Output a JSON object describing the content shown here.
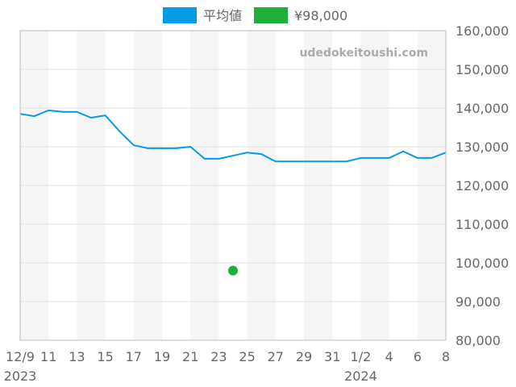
{
  "chart_data": {
    "type": "line",
    "title": "",
    "watermark": "udedokeitoushi.com",
    "ylim": [
      80000,
      160000
    ],
    "yticks": [
      "80,000",
      "90,000",
      "100,000",
      "110,000",
      "120,000",
      "130,000",
      "140,000",
      "150,000",
      "160,000"
    ],
    "xticks": [
      {
        "day": 0,
        "label": "12/9",
        "sub": "2023"
      },
      {
        "day": 2,
        "label": "11"
      },
      {
        "day": 4,
        "label": "13"
      },
      {
        "day": 6,
        "label": "15"
      },
      {
        "day": 8,
        "label": "17"
      },
      {
        "day": 10,
        "label": "19"
      },
      {
        "day": 12,
        "label": "21"
      },
      {
        "day": 14,
        "label": "23"
      },
      {
        "day": 16,
        "label": "25"
      },
      {
        "day": 18,
        "label": "27"
      },
      {
        "day": 20,
        "label": "29"
      },
      {
        "day": 22,
        "label": "31"
      },
      {
        "day": 24,
        "label": "1/2",
        "sub": "2024"
      },
      {
        "day": 26,
        "label": "4"
      },
      {
        "day": 28,
        "label": "6"
      },
      {
        "day": 30,
        "label": "8"
      }
    ],
    "x": [
      "2023-12-09",
      "2023-12-10",
      "2023-12-11",
      "2023-12-12",
      "2023-12-13",
      "2023-12-14",
      "2023-12-15",
      "2023-12-16",
      "2023-12-17",
      "2023-12-18",
      "2023-12-19",
      "2023-12-20",
      "2023-12-21",
      "2023-12-22",
      "2023-12-23",
      "2023-12-24",
      "2023-12-25",
      "2023-12-26",
      "2023-12-27",
      "2023-12-28",
      "2023-12-29",
      "2023-12-30",
      "2023-12-31",
      "2024-01-01",
      "2024-01-02",
      "2024-01-03",
      "2024-01-04",
      "2024-01-05",
      "2024-01-06",
      "2024-01-07",
      "2024-01-08"
    ],
    "series": [
      {
        "name": "平均値",
        "color": "#039be5",
        "values": [
          138500,
          137900,
          139400,
          139000,
          139000,
          137500,
          138100,
          134000,
          130400,
          129600,
          129600,
          129600,
          130000,
          126900,
          126900,
          127700,
          128500,
          128100,
          126200,
          126200,
          126200,
          126200,
          126200,
          126200,
          127100,
          127100,
          127100,
          128800,
          127100,
          127100,
          128500
        ]
      },
      {
        "name": "¥98,000",
        "color": "#20b03a",
        "type": "scatter",
        "points": [
          {
            "x": "2023-12-24",
            "y": 98000
          }
        ]
      }
    ],
    "grid": true,
    "legend": "top"
  }
}
